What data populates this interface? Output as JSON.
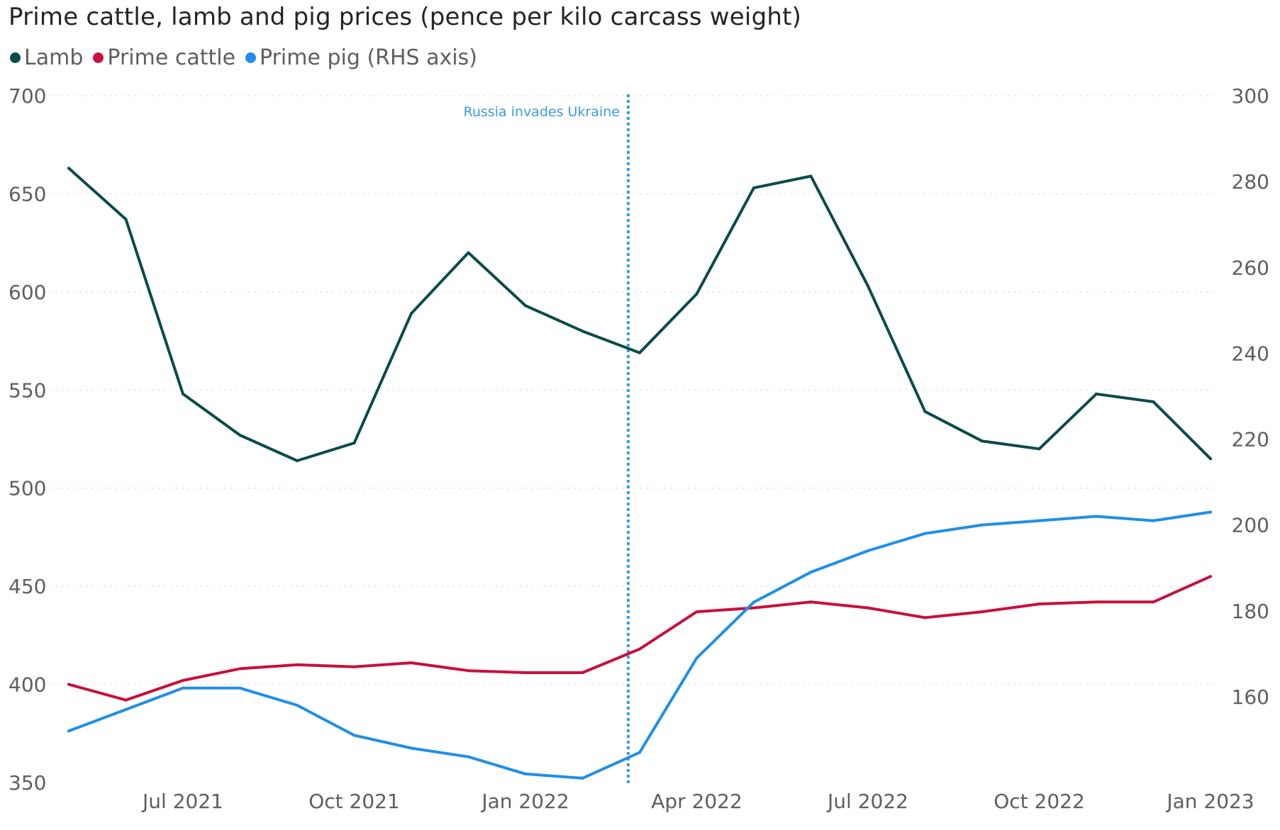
{
  "title": "Prime cattle, lamb and pig prices (pence per kilo carcass weight)",
  "legend": [
    {
      "label": "Lamb",
      "color": "#0b4b4b"
    },
    {
      "label": "Prime cattle",
      "color": "#c8103c"
    },
    {
      "label": "Prime pig (RHS axis)",
      "color": "#1f8fe8"
    }
  ],
  "chart_data": {
    "type": "line",
    "title": "Prime cattle, lamb and pig prices (pence per kilo carcass weight)",
    "x": [
      "May 2021",
      "Jun 2021",
      "Jul 2021",
      "Aug 2021",
      "Sep 2021",
      "Oct 2021",
      "Nov 2021",
      "Dec 2021",
      "Jan 2022",
      "Feb 2022",
      "Mar 2022",
      "Apr 2022",
      "May 2022",
      "Jun 2022",
      "Jul 2022",
      "Aug 2022",
      "Sep 2022",
      "Oct 2022",
      "Nov 2022",
      "Dec 2022",
      "Jan 2023"
    ],
    "x_tick_labels": [
      "Jul 2021",
      "Oct 2021",
      "Jan 2022",
      "Apr 2022",
      "Jul 2022",
      "Oct 2022",
      "Jan 2023"
    ],
    "x_tick_indices": [
      2,
      5,
      8,
      11,
      14,
      17,
      20
    ],
    "left_axis": {
      "ylim": [
        350,
        700
      ],
      "ticks": [
        350,
        400,
        450,
        500,
        550,
        600,
        650,
        700
      ]
    },
    "right_axis": {
      "ylim": [
        140,
        300
      ],
      "ticks": [
        160,
        180,
        200,
        220,
        240,
        260,
        280,
        300
      ]
    },
    "series": [
      {
        "name": "Lamb",
        "axis": "left",
        "color": "#0b4b4b",
        "values": [
          663,
          637,
          548,
          527,
          514,
          523,
          589,
          620,
          593,
          580,
          569,
          599,
          653,
          659,
          603,
          539,
          524,
          520,
          548,
          544,
          515
        ]
      },
      {
        "name": "Prime cattle",
        "axis": "left",
        "color": "#c8103c",
        "values": [
          400,
          392,
          402,
          408,
          410,
          409,
          411,
          407,
          406,
          406,
          418,
          437,
          439,
          442,
          439,
          434,
          437,
          441,
          442,
          442,
          455
        ]
      },
      {
        "name": "Prime pig (RHS axis)",
        "axis": "right",
        "color": "#1f8fe8",
        "values": [
          152,
          157,
          162,
          162,
          158,
          151,
          148,
          146,
          142,
          141,
          147,
          169,
          182,
          189,
          194,
          198,
          200,
          201,
          202,
          201,
          203
        ]
      }
    ],
    "annotation": {
      "label": "Russia invades Ukraine",
      "x_index": 9.8,
      "color": "#3b9be0"
    },
    "grid": true
  }
}
